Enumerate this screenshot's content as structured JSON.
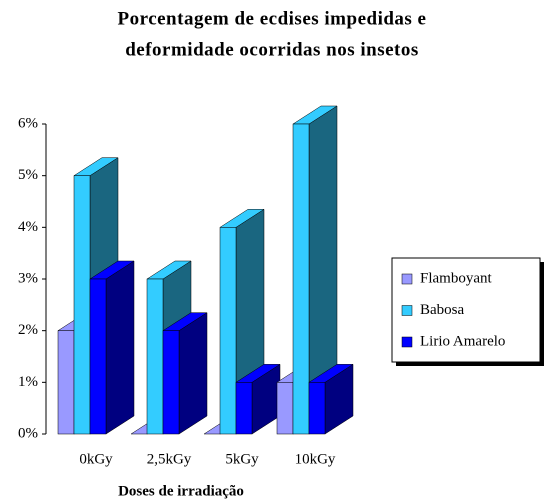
{
  "chart_data": {
    "type": "bar3d",
    "title": [
      "Porcentagem de ecdises impedidas e",
      "deformidade ocorridas nos insetos"
    ],
    "x_label": "Doses de irradiação",
    "categories": [
      "0kGy",
      "2,5kGy",
      "5kGy",
      "10kGy"
    ],
    "series": [
      {
        "name": "Flamboyant",
        "color": "#9999ff",
        "values": [
          2,
          0,
          0,
          1
        ]
      },
      {
        "name": "Babosa",
        "color": "#33ccff",
        "values": [
          5,
          3,
          4,
          6
        ]
      },
      {
        "name": "Lirio Amarelo",
        "color": "#0000ff",
        "values": [
          3,
          2,
          1,
          1
        ]
      }
    ],
    "ylim": [
      0,
      6
    ],
    "yticks": [
      {
        "value": 0,
        "label": "0%"
      },
      {
        "value": 1,
        "label": "1%"
      },
      {
        "value": 2,
        "label": "2%"
      },
      {
        "value": 3,
        "label": "3%"
      },
      {
        "value": 4,
        "label": "4%"
      },
      {
        "value": 5,
        "label": "5%"
      },
      {
        "value": 6,
        "label": "6%"
      }
    ],
    "legend": "right"
  }
}
